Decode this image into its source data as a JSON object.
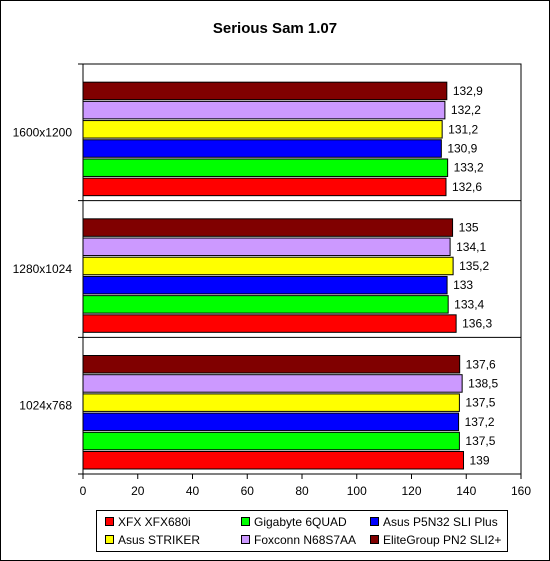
{
  "chart_data": {
    "type": "bar",
    "orientation": "horizontal",
    "title": "Serious Sam 1.07",
    "categories": [
      "1600x1200",
      "1280x1024",
      "1024x768"
    ],
    "series": [
      {
        "name": "XFX XFX680i",
        "color": "#FF0000",
        "values": [
          132.6,
          136.3,
          139
        ]
      },
      {
        "name": "Gigabyte 6QUAD",
        "color": "#00FF00",
        "values": [
          133.2,
          133.4,
          137.5
        ]
      },
      {
        "name": "Asus P5N32 SLI Plus",
        "color": "#0000FF",
        "values": [
          130.9,
          133,
          137.2
        ]
      },
      {
        "name": "Asus STRIKER",
        "color": "#FFFF00",
        "values": [
          131.2,
          135.2,
          137.5
        ]
      },
      {
        "name": "Foxconn N68S7AA",
        "color": "#CC99FF",
        "values": [
          132.2,
          134.1,
          138.5
        ]
      },
      {
        "name": "EliteGroup PN2 SLI2+",
        "color": "#800000",
        "values": [
          132.9,
          135,
          137.6
        ]
      }
    ],
    "value_labels": [
      [
        "132,6",
        "136,3",
        "139"
      ],
      [
        "133,2",
        "133,4",
        "137,5"
      ],
      [
        "130,9",
        "133",
        "137,2"
      ],
      [
        "131,2",
        "135,2",
        "137,5"
      ],
      [
        "132,2",
        "134,1",
        "138,5"
      ],
      [
        "132,9",
        "135",
        "137,6"
      ]
    ],
    "x_ticks": [
      0,
      20,
      40,
      60,
      80,
      100,
      120,
      140,
      160
    ],
    "xlim": [
      0,
      160
    ],
    "grid": false,
    "legend_position": "bottom"
  }
}
